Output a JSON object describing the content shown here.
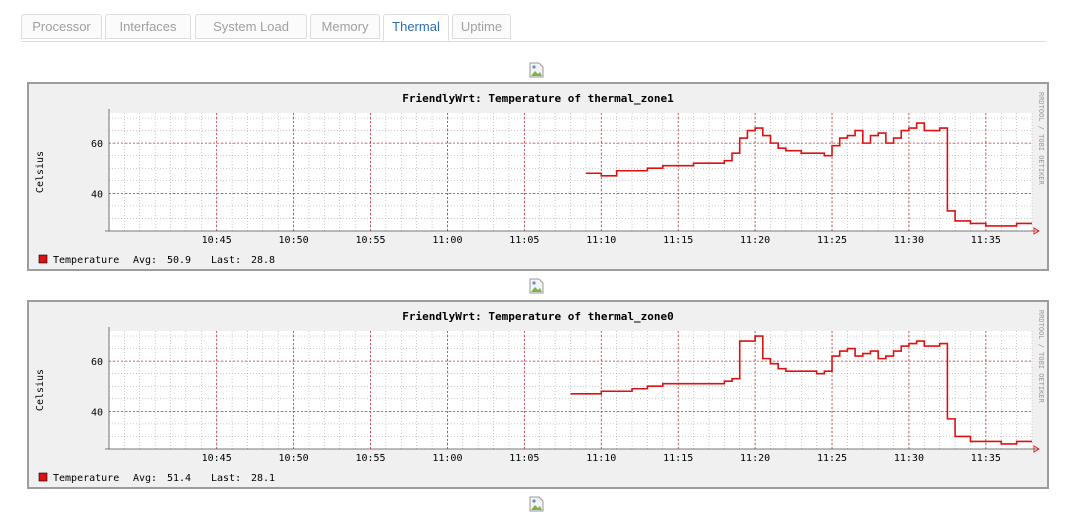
{
  "tabs": [
    {
      "label": "Processor",
      "active": false
    },
    {
      "label": "Interfaces",
      "active": false
    },
    {
      "label": "System Load",
      "active": false
    },
    {
      "label": "Memory",
      "active": false
    },
    {
      "label": "Thermal",
      "active": true
    },
    {
      "label": "Uptime",
      "active": false
    }
  ],
  "colors": {
    "accent": "#2a6db6",
    "series": "#dd1111",
    "major_grid": "#c43030",
    "minor_grid": "#9a9a9a"
  },
  "icons": [
    "broken-image-icon"
  ],
  "chart_data": [
    {
      "type": "line",
      "title": "FriendlyWrt: Temperature of thermal_zone1",
      "ylabel": "Celsius",
      "ylim": [
        25,
        72
      ],
      "yticks": [
        40,
        60
      ],
      "x_range": [
        "10:38",
        "11:38"
      ],
      "xticks": [
        "10:45",
        "10:50",
        "10:55",
        "11:00",
        "11:05",
        "11:10",
        "11:15",
        "11:20",
        "11:25",
        "11:30",
        "11:35"
      ],
      "grid": true,
      "side_label": "RRDTOOL / TOBI OETIKER",
      "legend": {
        "series": "Temperature",
        "avg_label": "Avg:",
        "avg": "50.9",
        "last_label": "Last:",
        "last": "28.8"
      },
      "series": [
        {
          "name": "Temperature",
          "x": [
            "11:09",
            "11:10",
            "11:11",
            "11:12",
            "11:13",
            "11:14",
            "11:15",
            "11:16",
            "11:17",
            "11:18",
            "11:18.5",
            "11:19",
            "11:19.5",
            "11:20",
            "11:20.5",
            "11:21",
            "11:21.5",
            "11:22",
            "11:23",
            "11:24",
            "11:24.5",
            "11:25",
            "11:25.5",
            "11:26",
            "11:26.5",
            "11:27",
            "11:27.5",
            "11:28",
            "11:28.5",
            "11:29",
            "11:29.5",
            "11:30",
            "11:30.5",
            "11:31",
            "11:32",
            "11:32.5",
            "11:33",
            "11:34",
            "11:35",
            "11:36",
            "11:37",
            "11:38"
          ],
          "values": [
            48,
            47,
            49,
            49,
            50,
            51,
            51,
            52,
            52,
            53,
            56,
            62,
            65,
            66,
            63,
            60,
            58,
            57,
            56,
            56,
            55,
            59,
            62,
            63,
            65,
            60,
            63,
            64,
            60,
            62,
            65,
            66,
            68,
            65,
            66,
            33,
            29,
            28,
            27,
            27,
            28,
            28
          ]
        }
      ]
    },
    {
      "type": "line",
      "title": "FriendlyWrt: Temperature of thermal_zone0",
      "ylabel": "Celsius",
      "ylim": [
        25,
        72
      ],
      "yticks": [
        40,
        60
      ],
      "x_range": [
        "10:38",
        "11:38"
      ],
      "xticks": [
        "10:45",
        "10:50",
        "10:55",
        "11:00",
        "11:05",
        "11:10",
        "11:15",
        "11:20",
        "11:25",
        "11:30",
        "11:35"
      ],
      "grid": true,
      "side_label": "RRDTOOL / TOBI OETIKER",
      "legend": {
        "series": "Temperature",
        "avg_label": "Avg:",
        "avg": "51.4",
        "last_label": "Last:",
        "last": "28.1"
      },
      "series": [
        {
          "name": "Temperature",
          "x": [
            "11:08",
            "11:09",
            "11:10",
            "11:11",
            "11:12",
            "11:13",
            "11:14",
            "11:15",
            "11:16",
            "11:17",
            "11:18",
            "11:18.5",
            "11:19",
            "11:20",
            "11:20.5",
            "11:21",
            "11:21.5",
            "11:22",
            "11:23",
            "11:24",
            "11:24.5",
            "11:25",
            "11:25.5",
            "11:26",
            "11:26.5",
            "11:27",
            "11:27.5",
            "11:28",
            "11:28.5",
            "11:29",
            "11:29.5",
            "11:30",
            "11:30.5",
            "11:31",
            "11:32",
            "11:32.5",
            "11:33",
            "11:34",
            "11:35",
            "11:36",
            "11:37",
            "11:38"
          ],
          "values": [
            47,
            47,
            48,
            48,
            49,
            50,
            51,
            51,
            51,
            51,
            52,
            53,
            68,
            70,
            61,
            59,
            57,
            56,
            56,
            55,
            56,
            62,
            64,
            65,
            62,
            63,
            64,
            61,
            62,
            64,
            66,
            67,
            68,
            66,
            67,
            37,
            30,
            28,
            28,
            27,
            28,
            28
          ]
        }
      ]
    }
  ]
}
